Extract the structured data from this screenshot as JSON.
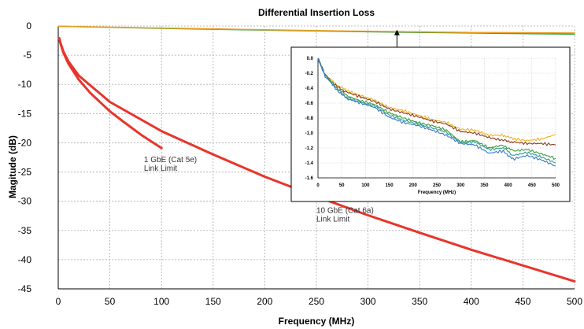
{
  "chart_data": [
    {
      "type": "line",
      "title": "Differential Insertion Loss",
      "xlabel": "Frequency (MHz)",
      "ylabel": "Magitude (dB)",
      "xlim": [
        0,
        500
      ],
      "ylim": [
        -45,
        0
      ],
      "xticks": [
        0,
        50,
        100,
        150,
        200,
        250,
        300,
        350,
        400,
        450,
        500
      ],
      "yticks": [
        0,
        -5,
        -10,
        -15,
        -20,
        -25,
        -30,
        -35,
        -40,
        -45
      ],
      "grid": true,
      "annotations": [
        {
          "id": "cat5e",
          "text": [
            "1 GbE (Cat 5e)",
            "Link Limit"
          ],
          "x": 83,
          "y": -23.3
        },
        {
          "id": "cat6a",
          "text": [
            "10 GbE (Cat 6a)",
            "Link Limit"
          ],
          "x": 250,
          "y": -32.0
        },
        {
          "id": "inset-arrow",
          "text": [],
          "x": 328,
          "y": -0.5
        }
      ],
      "series": [
        {
          "id": "cat5e-limit",
          "color": "#e8352b",
          "x": [
            1,
            2,
            5,
            10,
            20,
            31.25,
            50,
            62.5,
            80,
            100
          ],
          "y": [
            -2.1,
            -2.9,
            -4.6,
            -6.5,
            -9.2,
            -11.5,
            -14.6,
            -16.3,
            -18.6,
            -20.9
          ]
        },
        {
          "id": "cat6a-limit",
          "color": "#e8352b",
          "x": [
            1,
            2,
            5,
            10,
            20,
            50,
            100,
            150,
            200,
            250,
            300,
            350,
            400,
            450,
            500
          ],
          "y": [
            -2.1,
            -2.8,
            -4.4,
            -6.1,
            -8.5,
            -13.0,
            -18.0,
            -22.0,
            -25.8,
            -29.2,
            -32.4,
            -35.4,
            -38.3,
            -41.0,
            -43.7
          ]
        },
        {
          "id": "meas-green",
          "color": "#3a9a3a",
          "x": [
            0,
            100,
            200,
            300,
            400,
            500
          ],
          "y": [
            -0.05,
            -0.4,
            -0.7,
            -1.0,
            -1.2,
            -1.4
          ]
        },
        {
          "id": "meas-orange",
          "color": "#e8a020",
          "x": [
            0,
            100,
            200,
            300,
            400,
            500
          ],
          "y": [
            -0.05,
            -0.35,
            -0.65,
            -0.9,
            -1.1,
            -1.2
          ]
        }
      ]
    },
    {
      "type": "line",
      "title": "",
      "xlabel": "Frequency (MHz)",
      "ylabel": "",
      "xlim": [
        0,
        500
      ],
      "ylim": [
        -1.6,
        0.0
      ],
      "xticks": [
        0,
        50,
        100,
        150,
        200,
        250,
        300,
        350,
        400,
        450,
        500
      ],
      "yticks": [
        "0.0",
        "-0.2",
        "-0.4",
        "-0.6",
        "-0.8",
        "-1.0",
        "-1.2",
        "-1.4",
        "-1.6"
      ],
      "grid": true,
      "series": [
        {
          "id": "inset-orange",
          "color": "#f0b020",
          "x": [
            0,
            15,
            40,
            60,
            90,
            120,
            150,
            180,
            210,
            240,
            270,
            300,
            330,
            360,
            390,
            410,
            440,
            470,
            500
          ],
          "y": [
            0.0,
            -0.22,
            -0.36,
            -0.43,
            -0.5,
            -0.56,
            -0.66,
            -0.7,
            -0.76,
            -0.82,
            -0.86,
            -0.95,
            -0.96,
            -1.03,
            -1.03,
            -1.08,
            -1.1,
            -1.08,
            -1.02
          ]
        },
        {
          "id": "inset-brown",
          "color": "#8b3a1a",
          "x": [
            0,
            15,
            40,
            60,
            90,
            120,
            150,
            180,
            210,
            240,
            270,
            300,
            330,
            360,
            390,
            410,
            440,
            470,
            500
          ],
          "y": [
            0.0,
            -0.22,
            -0.38,
            -0.45,
            -0.52,
            -0.58,
            -0.68,
            -0.73,
            -0.78,
            -0.84,
            -0.88,
            -0.98,
            -1.0,
            -1.06,
            -1.1,
            -1.12,
            -1.14,
            -1.14,
            -1.16
          ]
        },
        {
          "id": "inset-green",
          "color": "#3a9a3a",
          "x": [
            0,
            15,
            40,
            60,
            90,
            120,
            150,
            180,
            210,
            240,
            270,
            300,
            330,
            360,
            390,
            410,
            440,
            470,
            500
          ],
          "y": [
            0.0,
            -0.22,
            -0.4,
            -0.5,
            -0.57,
            -0.62,
            -0.73,
            -0.8,
            -0.86,
            -0.9,
            -0.96,
            -1.12,
            -1.1,
            -1.2,
            -1.16,
            -1.24,
            -1.22,
            -1.28,
            -1.34
          ]
        },
        {
          "id": "inset-teal",
          "color": "#2f9f8f",
          "x": [
            0,
            15,
            40,
            60,
            90,
            120,
            150,
            180,
            210,
            240,
            270,
            300,
            330,
            360,
            390,
            410,
            440,
            470,
            500
          ],
          "y": [
            0.0,
            -0.23,
            -0.41,
            -0.52,
            -0.59,
            -0.64,
            -0.76,
            -0.83,
            -0.88,
            -0.93,
            -0.99,
            -1.13,
            -1.12,
            -1.22,
            -1.2,
            -1.3,
            -1.26,
            -1.32,
            -1.4
          ]
        },
        {
          "id": "inset-blue",
          "color": "#3a78c8",
          "x": [
            0,
            15,
            40,
            60,
            90,
            120,
            150,
            180,
            210,
            240,
            270,
            300,
            330,
            360,
            390,
            410,
            440,
            470,
            500
          ],
          "y": [
            0.0,
            -0.24,
            -0.42,
            -0.54,
            -0.6,
            -0.66,
            -0.79,
            -0.86,
            -0.9,
            -0.96,
            -1.03,
            -1.14,
            -1.16,
            -1.27,
            -1.24,
            -1.35,
            -1.3,
            -1.36,
            -1.44
          ]
        }
      ]
    }
  ]
}
